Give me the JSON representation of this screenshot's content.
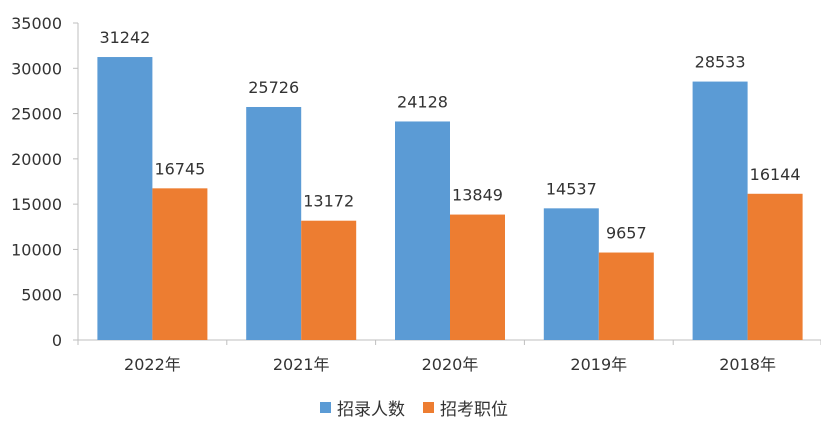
{
  "chart_data": {
    "type": "bar",
    "categories": [
      "2022年",
      "2021年",
      "2020年",
      "2019年",
      "2018年"
    ],
    "series": [
      {
        "name": "招录人数",
        "color": "#5b9bd5",
        "values": [
          31242,
          25726,
          24128,
          14537,
          28533
        ]
      },
      {
        "name": "招考职位",
        "color": "#ed7d31",
        "values": [
          16745,
          13172,
          13849,
          9657,
          16144
        ]
      }
    ],
    "ylim": [
      0,
      35000
    ],
    "yticks": [
      0,
      5000,
      10000,
      15000,
      20000,
      25000,
      30000,
      35000
    ],
    "grid": false,
    "legend_position": "bottom"
  }
}
